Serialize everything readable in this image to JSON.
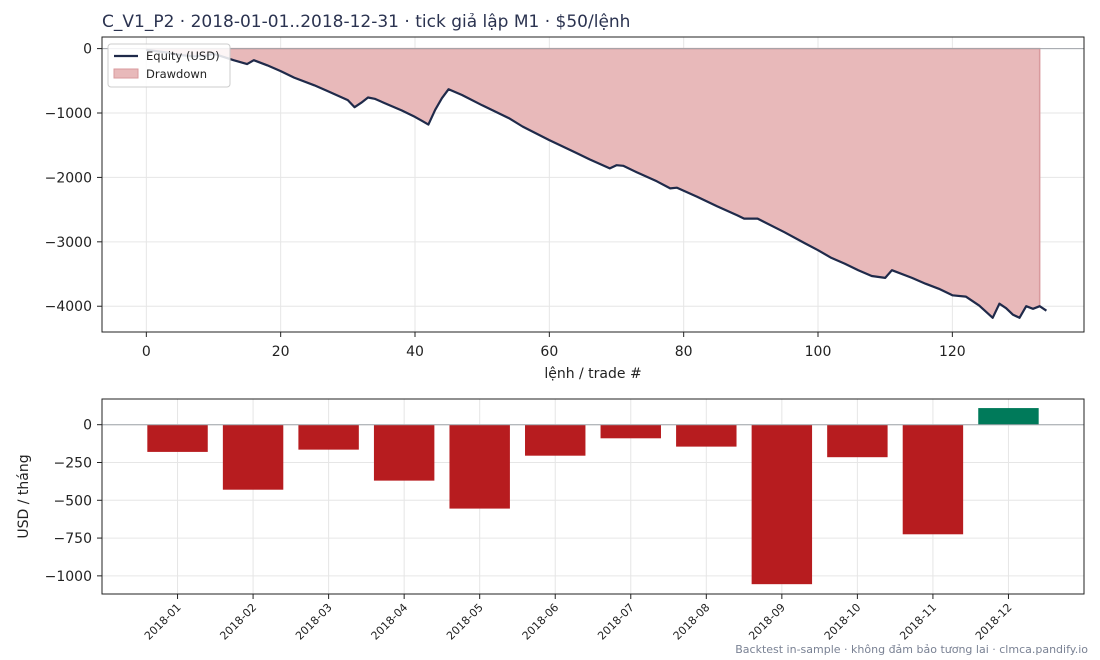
{
  "title": "C_V1_P2 · 2018-01-01..2018-12-31 · tick giả lập M1 · $50/lệnh",
  "footer": "Backtest in-sample · không đảm bảo tương lai · clmca.pandify.io",
  "colors": {
    "equity": "#1f2a4a",
    "drawdown_fill": "#e8b9ba",
    "drawdown_edge": "#d99a9d",
    "negative_bar": "#b71c1f",
    "positive_bar": "#007a5a",
    "grid": "#e6e6e6",
    "zero_line": "#a0a4aa"
  },
  "chart_data": [
    {
      "type": "line",
      "xlabel": "lệnh / trade #",
      "ylabel": "",
      "xlim": [
        -6.6,
        139.6
      ],
      "ylim": [
        -4400,
        180
      ],
      "xticks": [
        0,
        20,
        40,
        60,
        80,
        100,
        120
      ],
      "yticks": [
        0,
        -1000,
        -2000,
        -3000,
        -4000
      ],
      "ytick_labels": [
        "0",
        "−1000",
        "−2000",
        "−3000",
        "−4000"
      ],
      "grid": true,
      "legend_position": "top-left",
      "series": [
        {
          "name": "Equity (USD)",
          "kind": "line",
          "points": [
            [
              0,
              -20
            ],
            [
              3,
              -60
            ],
            [
              5,
              -100
            ],
            [
              7,
              -120
            ],
            [
              9,
              -110
            ],
            [
              10,
              -80
            ],
            [
              13,
              -180
            ],
            [
              15,
              -240
            ],
            [
              16,
              -180
            ],
            [
              18,
              -260
            ],
            [
              20,
              -350
            ],
            [
              22,
              -450
            ],
            [
              25,
              -570
            ],
            [
              27,
              -660
            ],
            [
              30,
              -800
            ],
            [
              31,
              -910
            ],
            [
              32,
              -840
            ],
            [
              33,
              -760
            ],
            [
              34,
              -780
            ],
            [
              36,
              -870
            ],
            [
              38,
              -960
            ],
            [
              40,
              -1060
            ],
            [
              41,
              -1120
            ],
            [
              42,
              -1180
            ],
            [
              43,
              -950
            ],
            [
              44,
              -770
            ],
            [
              45,
              -630
            ],
            [
              47,
              -720
            ],
            [
              50,
              -880
            ],
            [
              54,
              -1080
            ],
            [
              56,
              -1210
            ],
            [
              60,
              -1420
            ],
            [
              64,
              -1620
            ],
            [
              66,
              -1720
            ],
            [
              69,
              -1860
            ],
            [
              70,
              -1810
            ],
            [
              71,
              -1820
            ],
            [
              73,
              -1920
            ],
            [
              76,
              -2060
            ],
            [
              78,
              -2170
            ],
            [
              79,
              -2160
            ],
            [
              82,
              -2300
            ],
            [
              85,
              -2450
            ],
            [
              88,
              -2590
            ],
            [
              89,
              -2640
            ],
            [
              91,
              -2640
            ],
            [
              95,
              -2850
            ],
            [
              98,
              -3020
            ],
            [
              100,
              -3130
            ],
            [
              102,
              -3250
            ],
            [
              104,
              -3340
            ],
            [
              106,
              -3440
            ],
            [
              108,
              -3530
            ],
            [
              110,
              -3560
            ],
            [
              111,
              -3440
            ],
            [
              114,
              -3560
            ],
            [
              116,
              -3650
            ],
            [
              118,
              -3730
            ],
            [
              120,
              -3830
            ],
            [
              122,
              -3850
            ],
            [
              123,
              -3920
            ],
            [
              124,
              -3990
            ],
            [
              126,
              -4180
            ],
            [
              127,
              -3960
            ],
            [
              128,
              -4030
            ],
            [
              129,
              -4130
            ],
            [
              130,
              -4180
            ],
            [
              131,
              -4000
            ],
            [
              132,
              -4040
            ],
            [
              133,
              -4000
            ],
            [
              134,
              -4070
            ]
          ]
        },
        {
          "name": "Drawdown",
          "kind": "area",
          "points": [
            [
              0,
              0
            ],
            [
              133,
              0
            ],
            [
              133,
              -4060
            ],
            [
              0,
              -20
            ]
          ],
          "note_fill_follows_equity": true
        }
      ]
    },
    {
      "type": "bar",
      "xlabel": "",
      "ylabel": "USD / tháng",
      "ylim": [
        -1120,
        170
      ],
      "yticks": [
        0,
        -250,
        -500,
        -750,
        -1000
      ],
      "ytick_labels": [
        "0",
        "−250",
        "−500",
        "−750",
        "−1000"
      ],
      "grid": true,
      "categories": [
        "2018-01",
        "2018-02",
        "2018-03",
        "2018-04",
        "2018-05",
        "2018-06",
        "2018-07",
        "2018-08",
        "2018-09",
        "2018-10",
        "2018-11",
        "2018-12"
      ],
      "values": [
        -180,
        -430,
        -165,
        -370,
        -555,
        -205,
        -90,
        -145,
        -1055,
        -215,
        -725,
        110
      ]
    }
  ]
}
